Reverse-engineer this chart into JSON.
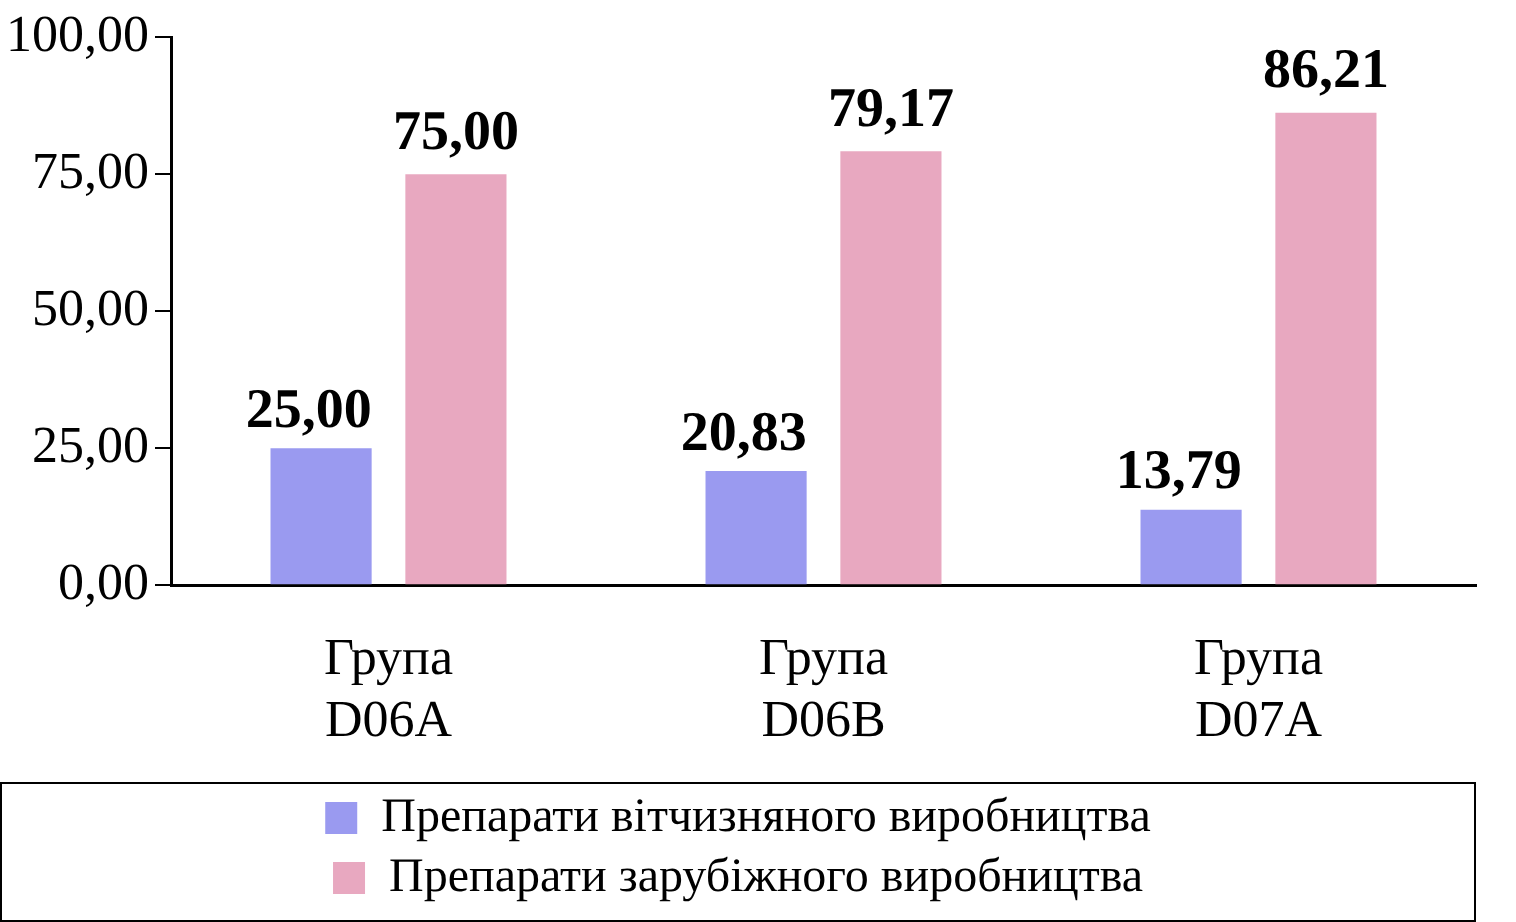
{
  "chart_data": {
    "type": "bar",
    "categories": [
      "Група D06A",
      "Група D06B",
      "Група D07A"
    ],
    "series": [
      {
        "name": "Препарати вітчизняного виробництва",
        "color": "#9a9af0",
        "values": [
          25.0,
          20.83,
          13.79
        ],
        "value_labels": [
          "25,00",
          "20,83",
          "13,79"
        ]
      },
      {
        "name": "Препарати зарубіжного виробництва",
        "color": "#e8a8c0",
        "values": [
          75.0,
          79.17,
          86.21
        ],
        "value_labels": [
          "75,00",
          "79,17",
          "86,21"
        ]
      }
    ],
    "ylim": [
      0,
      100
    ],
    "yticks": [
      {
        "value": 0,
        "label": "0,00"
      },
      {
        "value": 25,
        "label": "25,00"
      },
      {
        "value": 50,
        "label": "50,00"
      },
      {
        "value": 75,
        "label": "75,00"
      },
      {
        "value": 100,
        "label": "100,00"
      }
    ],
    "grid": false,
    "legend": "bottom"
  }
}
